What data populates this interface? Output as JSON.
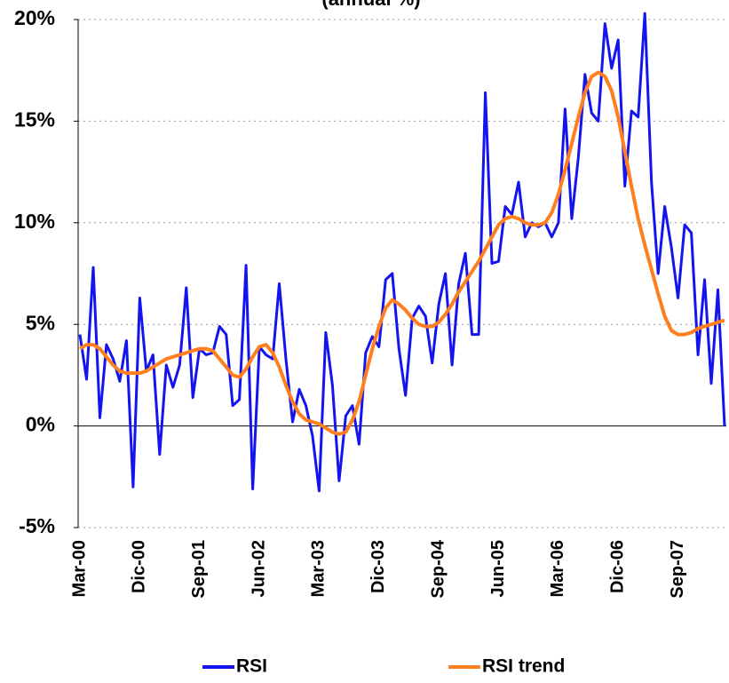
{
  "chart_data": {
    "type": "line",
    "subtitle": "(annual %)",
    "categories": [
      "Mar-00",
      null,
      null,
      null,
      null,
      null,
      null,
      null,
      null,
      "Dic-00",
      null,
      null,
      null,
      null,
      null,
      null,
      null,
      null,
      "Sep-01",
      null,
      null,
      null,
      null,
      null,
      null,
      null,
      null,
      "Jun-02",
      null,
      null,
      null,
      null,
      null,
      null,
      null,
      null,
      "Mar-03",
      null,
      null,
      null,
      null,
      null,
      null,
      null,
      null,
      "Dic-03",
      null,
      null,
      null,
      null,
      null,
      null,
      null,
      null,
      "Sep-04",
      null,
      null,
      null,
      null,
      null,
      null,
      null,
      null,
      "Jun-05",
      null,
      null,
      null,
      null,
      null,
      null,
      null,
      null,
      "Mar-06",
      null,
      null,
      null,
      null,
      null,
      null,
      null,
      null,
      "Dic-06",
      null,
      null,
      null,
      null,
      null,
      null,
      null,
      null,
      "Sep-07",
      null,
      null,
      null,
      null,
      null,
      null,
      null
    ],
    "series": [
      {
        "name": "RSI",
        "color": "#1414ee",
        "values": [
          4.5,
          2.3,
          7.8,
          0.4,
          4,
          3.3,
          2.2,
          4.2,
          -3,
          6.3,
          2.7,
          3.5,
          -1.4,
          3,
          1.9,
          3,
          6.8,
          1.4,
          3.8,
          3.5,
          3.6,
          4.9,
          4.5,
          1,
          1.3,
          7.9,
          -3.1,
          3.9,
          3.5,
          3.3,
          7,
          3.3,
          0.2,
          1.8,
          1,
          -0.5,
          -3.2,
          4.6,
          2,
          -2.7,
          0.5,
          1,
          -0.9,
          3.6,
          4.4,
          3.9,
          7.2,
          7.5,
          3.8,
          1.5,
          5.3,
          5.9,
          5.4,
          3.1,
          6,
          7.5,
          3,
          7,
          8.5,
          4.5,
          4.5,
          16.4,
          8,
          8.1,
          10.8,
          10.4,
          12,
          9.3,
          10,
          9.8,
          10,
          9.3,
          10,
          15.6,
          10.2,
          13.2,
          17.3,
          15.4,
          15,
          19.8,
          17.6,
          19,
          11.8,
          15.5,
          15.2,
          20.3,
          12,
          7.5,
          10.8,
          8.8,
          6.3,
          9.9,
          9.5,
          3.5,
          7.2,
          2.1,
          6.7,
          0
        ]
      },
      {
        "name": "RSI trend",
        "color": "#ff7f1f",
        "values": [
          3.8,
          4,
          4,
          3.8,
          3.4,
          3,
          2.7,
          2.6,
          2.6,
          2.6,
          2.7,
          2.9,
          3.1,
          3.3,
          3.4,
          3.5,
          3.6,
          3.7,
          3.8,
          3.8,
          3.7,
          3.3,
          2.9,
          2.5,
          2.4,
          2.8,
          3.4,
          3.9,
          4,
          3.6,
          2.9,
          2,
          1.2,
          0.6,
          0.3,
          0.2,
          0.1,
          -0.1,
          -0.3,
          -0.4,
          -0.3,
          0.3,
          1.2,
          2.5,
          3.8,
          4.9,
          5.8,
          6.2,
          6,
          5.7,
          5.3,
          5,
          4.9,
          4.9,
          5.1,
          5.5,
          6,
          6.6,
          7.1,
          7.6,
          8.1,
          8.7,
          9.3,
          9.9,
          10.2,
          10.3,
          10.2,
          10,
          9.9,
          9.9,
          10,
          10.5,
          11.4,
          12.6,
          13.9,
          15.2,
          16.4,
          17.2,
          17.4,
          17.2,
          16.5,
          15.2,
          13.5,
          11.8,
          10.2,
          8.9,
          7.7,
          6.5,
          5.4,
          4.7,
          4.5,
          4.5,
          4.6,
          4.8,
          4.9,
          5,
          5.1,
          5.2
        ]
      }
    ],
    "ylim": [
      -5,
      20
    ],
    "yticks": [
      {
        "value": -5,
        "label": "-5%"
      },
      {
        "value": 0,
        "label": "0%"
      },
      {
        "value": 5,
        "label": "5%"
      },
      {
        "value": 10,
        "label": "10%"
      },
      {
        "value": 15,
        "label": "15%"
      },
      {
        "value": 20,
        "label": "20%"
      }
    ],
    "grid": true,
    "legend": "bottom"
  }
}
